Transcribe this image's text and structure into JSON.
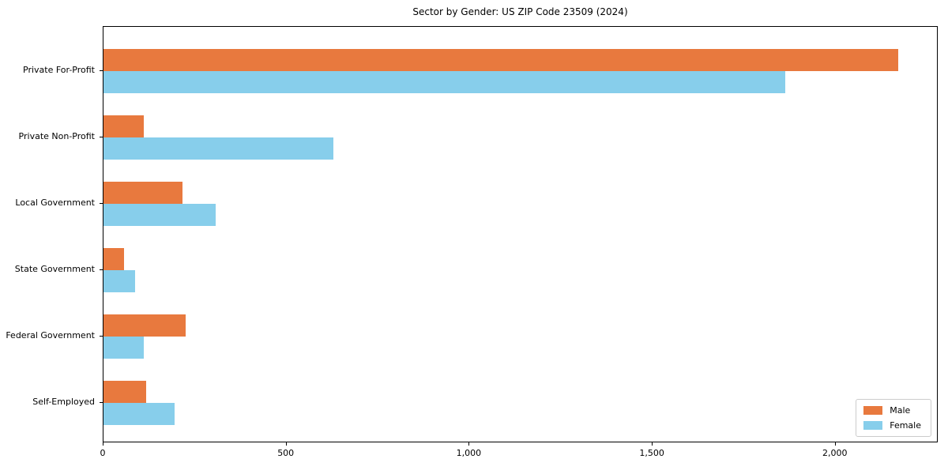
{
  "figure": {
    "title": "Sector by Gender: US ZIP Code 23509 (2024)"
  },
  "chart_data": {
    "type": "bar",
    "orientation": "horizontal",
    "title": "Sector by Gender: US ZIP Code 23509 (2024)",
    "categories": [
      "Private For-Profit",
      "Private Non-Profit",
      "Local Government",
      "State Government",
      "Federal Government",
      "Self-Employed"
    ],
    "series": [
      {
        "name": "Male",
        "color": "#e8793e",
        "values": [
          2170,
          111,
          216,
          55,
          225,
          117
        ]
      },
      {
        "name": "Female",
        "color": "#87ceeb",
        "values": [
          1863,
          627,
          307,
          87,
          111,
          194
        ]
      }
    ],
    "xlabel": "",
    "ylabel": "",
    "x_ticks": [
      0,
      500,
      1000,
      1500,
      2000
    ],
    "x_tick_labels": [
      "0",
      "500",
      "1,000",
      "1,500",
      "2,000"
    ],
    "xlim": [
      0,
      2281
    ],
    "grid": false,
    "background": "#ffffff",
    "axis_color": "#000000",
    "legend": {
      "position": "lower right",
      "entries": [
        "Male",
        "Female"
      ]
    }
  }
}
